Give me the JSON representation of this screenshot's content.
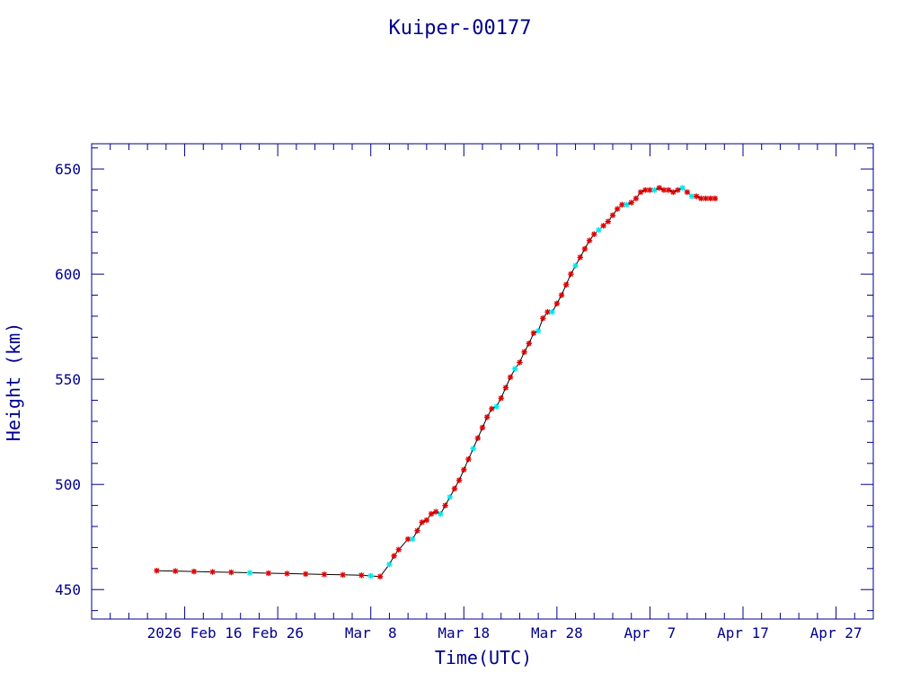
{
  "chart_data": {
    "type": "scatter",
    "title": "Kuiper-00177",
    "xlabel": "Time(UTC)",
    "ylabel": "Height (km)",
    "x_axis": {
      "type": "date",
      "range": [
        "2026-02-06",
        "2026-05-01"
      ],
      "major_ticks": [
        {
          "date": "2026-02-16",
          "label": "2026 Feb 16"
        },
        {
          "date": "2026-02-26",
          "label": "Feb 26"
        },
        {
          "date": "2026-03-08",
          "label": "Mar  8"
        },
        {
          "date": "2026-03-18",
          "label": "Mar 18"
        },
        {
          "date": "2026-03-28",
          "label": "Mar 28"
        },
        {
          "date": "2026-04-07",
          "label": "Apr  7"
        },
        {
          "date": "2026-04-17",
          "label": "Apr 17"
        },
        {
          "date": "2026-04-27",
          "label": "Apr 27"
        }
      ]
    },
    "y_axis": {
      "range": [
        436,
        662
      ],
      "major_ticks": [
        450,
        500,
        550,
        600,
        650
      ],
      "minor_step": 10
    },
    "grid": false,
    "colors": {
      "axes": "#00008b",
      "text": "#00008b",
      "line": "#000000",
      "marker_primary": "#dd0000",
      "marker_secondary": "#00e5ee"
    },
    "series": [
      {
        "marker": "asterisk",
        "connected": true,
        "x": [
          "2026-02-13",
          "2026-02-15",
          "2026-02-17",
          "2026-02-19",
          "2026-02-21",
          "2026-02-23",
          "2026-02-25",
          "2026-02-27",
          "2026-03-01",
          "2026-03-03",
          "2026-03-05",
          "2026-03-07",
          "2026-03-08",
          "2026-03-09",
          "2026-03-10",
          "2026-03-10T12:00",
          "2026-03-11",
          "2026-03-12",
          "2026-03-12T12:00",
          "2026-03-13",
          "2026-03-13T12:00",
          "2026-03-14",
          "2026-03-14T12:00",
          "2026-03-15",
          "2026-03-15T12:00",
          "2026-03-16",
          "2026-03-16T12:00",
          "2026-03-17",
          "2026-03-17T12:00",
          "2026-03-18",
          "2026-03-18T12:00",
          "2026-03-19",
          "2026-03-19T12:00",
          "2026-03-20",
          "2026-03-20T12:00",
          "2026-03-21",
          "2026-03-21T12:00",
          "2026-03-22",
          "2026-03-22T12:00",
          "2026-03-23",
          "2026-03-23T12:00",
          "2026-03-24",
          "2026-03-24T12:00",
          "2026-03-25",
          "2026-03-25T12:00",
          "2026-03-26",
          "2026-03-26T12:00",
          "2026-03-27",
          "2026-03-27T12:00",
          "2026-03-28",
          "2026-03-28T12:00",
          "2026-03-29",
          "2026-03-29T12:00",
          "2026-03-30",
          "2026-03-30T12:00",
          "2026-03-31",
          "2026-03-31T12:00",
          "2026-04-01",
          "2026-04-01T12:00",
          "2026-04-02",
          "2026-04-02T12:00",
          "2026-04-03",
          "2026-04-03T12:00",
          "2026-04-04",
          "2026-04-04T12:00",
          "2026-04-05",
          "2026-04-05T12:00",
          "2026-04-06",
          "2026-04-06T12:00",
          "2026-04-07",
          "2026-04-07T12:00",
          "2026-04-08",
          "2026-04-08T12:00",
          "2026-04-09",
          "2026-04-09T12:00",
          "2026-04-10",
          "2026-04-10T12:00",
          "2026-04-11",
          "2026-04-11T12:00",
          "2026-04-12",
          "2026-04-12T12:00",
          "2026-04-13",
          "2026-04-13T12:00",
          "2026-04-14"
        ],
        "y": [
          459,
          458.8,
          458.6,
          458.4,
          458.2,
          458,
          457.8,
          457.6,
          457.4,
          457.2,
          457,
          456.8,
          456.5,
          456.2,
          462,
          466,
          469,
          474,
          474,
          478,
          482,
          483,
          486,
          487,
          486,
          490,
          494,
          498,
          502,
          507,
          512,
          517,
          522,
          527,
          532,
          536,
          537,
          541,
          546,
          551,
          555,
          558,
          563,
          567,
          572,
          573,
          579,
          582,
          582,
          586,
          590,
          595,
          600,
          604,
          608,
          612,
          616,
          619,
          621,
          623,
          625,
          628,
          631,
          633,
          633,
          634,
          636,
          639,
          640,
          640,
          640,
          641,
          640,
          640,
          639,
          640,
          641,
          639,
          637,
          637,
          636,
          636,
          636,
          636
        ],
        "highlight_indices": [
          5,
          12,
          14,
          18,
          24,
          26,
          31,
          36,
          40,
          45,
          48,
          53,
          58,
          64,
          70,
          76,
          78
        ]
      }
    ]
  }
}
